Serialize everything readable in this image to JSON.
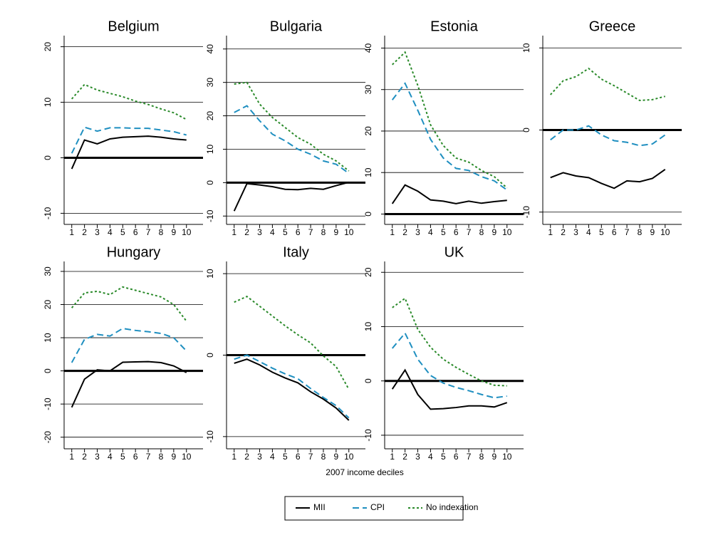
{
  "xlabel": "2007 income deciles",
  "chart_data": [
    {
      "type": "line",
      "title": "Belgium",
      "x": [
        1,
        2,
        3,
        4,
        5,
        6,
        7,
        8,
        9,
        10
      ],
      "xticks": [
        1,
        2,
        3,
        4,
        5,
        6,
        7,
        8,
        9,
        10
      ],
      "xlim": [
        0.4,
        11.3
      ],
      "ylim": [
        -12,
        22
      ],
      "yticks": [
        -10,
        0,
        10,
        20
      ],
      "grid": true,
      "hline": 0,
      "series": [
        {
          "name": "MII",
          "color": "#000000",
          "dash": "solid",
          "values": [
            -2,
            3.2,
            2.5,
            3.4,
            3.7,
            3.8,
            3.9,
            3.7,
            3.4,
            3.2
          ]
        },
        {
          "name": "CPI",
          "color": "#1f8fc0",
          "dash": "dashed",
          "values": [
            0.8,
            5.5,
            4.8,
            5.4,
            5.4,
            5.3,
            5.3,
            5.0,
            4.7,
            4.1
          ]
        },
        {
          "name": "No indexation",
          "color": "#2a8a2a",
          "dash": "dotted",
          "values": [
            10.6,
            13.2,
            12.2,
            11.6,
            11,
            10.2,
            9.6,
            8.8,
            8.1,
            6.9
          ]
        }
      ]
    },
    {
      "type": "line",
      "title": "Bulgaria",
      "x": [
        1,
        2,
        3,
        4,
        5,
        6,
        7,
        8,
        9,
        10
      ],
      "xticks": [
        1,
        2,
        3,
        4,
        5,
        6,
        7,
        8,
        9,
        10
      ],
      "xlim": [
        0.4,
        11.3
      ],
      "ylim": [
        -12.5,
        44
      ],
      "yticks": [
        -10,
        0,
        10,
        20,
        30,
        40
      ],
      "grid": true,
      "hline": 0,
      "series": [
        {
          "name": "MII",
          "color": "#000000",
          "dash": "solid",
          "values": [
            -8.5,
            -0.3,
            -0.7,
            -1.2,
            -2,
            -2.1,
            -1.7,
            -2,
            -0.9,
            0.1
          ]
        },
        {
          "name": "CPI",
          "color": "#1f8fc0",
          "dash": "dashed",
          "values": [
            21,
            23,
            18.5,
            14.5,
            12.5,
            10,
            8.5,
            6.5,
            5.5,
            2.8
          ]
        },
        {
          "name": "No indexation",
          "color": "#2a8a2a",
          "dash": "dotted",
          "values": [
            29.5,
            30,
            23.5,
            19.5,
            16.5,
            13.5,
            11.5,
            8.5,
            6.5,
            3.5
          ]
        }
      ]
    },
    {
      "type": "line",
      "title": "Estonia",
      "x": [
        1,
        2,
        3,
        4,
        5,
        6,
        7,
        8,
        9,
        10
      ],
      "xticks": [
        1,
        2,
        3,
        4,
        5,
        6,
        7,
        8,
        9,
        10
      ],
      "xlim": [
        0.4,
        11.3
      ],
      "ylim": [
        -2.5,
        43
      ],
      "yticks": [
        0,
        10,
        20,
        30,
        40
      ],
      "grid": true,
      "hline": 0,
      "series": [
        {
          "name": "MII",
          "color": "#000000",
          "dash": "solid",
          "values": [
            2.5,
            7,
            5.5,
            3.4,
            3.1,
            2.5,
            3.1,
            2.6,
            3,
            3.3
          ]
        },
        {
          "name": "CPI",
          "color": "#1f8fc0",
          "dash": "dashed",
          "values": [
            27.5,
            31.5,
            25,
            18,
            13.5,
            11,
            10.5,
            9,
            8,
            5.8
          ]
        },
        {
          "name": "No indexation",
          "color": "#2a8a2a",
          "dash": "dotted",
          "values": [
            36,
            39,
            31,
            21.5,
            16.5,
            13.5,
            12.5,
            10.5,
            9,
            6.3
          ]
        }
      ]
    },
    {
      "type": "line",
      "title": "Greece",
      "x": [
        1,
        2,
        3,
        4,
        5,
        6,
        7,
        8,
        9,
        10
      ],
      "xticks": [
        1,
        2,
        3,
        4,
        5,
        6,
        7,
        8,
        9,
        10
      ],
      "xlim": [
        0.4,
        11.3
      ],
      "ylim": [
        -11.5,
        11.5
      ],
      "yticks": [
        -10,
        0,
        10
      ],
      "grid": true,
      "hline": 0,
      "series": [
        {
          "name": "MII",
          "color": "#000000",
          "dash": "solid",
          "values": [
            -5.8,
            -5.2,
            -5.6,
            -5.8,
            -6.5,
            -7.1,
            -6.2,
            -6.3,
            -5.9,
            -4.8
          ]
        },
        {
          "name": "CPI",
          "color": "#1f8fc0",
          "dash": "dashed",
          "values": [
            -1.2,
            0,
            0,
            0.5,
            -0.6,
            -1.3,
            -1.5,
            -1.9,
            -1.7,
            -0.6
          ]
        },
        {
          "name": "No indexation",
          "color": "#2a8a2a",
          "dash": "dotted",
          "values": [
            4.3,
            6,
            6.5,
            7.5,
            6.2,
            5.4,
            4.5,
            3.6,
            3.7,
            4.1
          ]
        }
      ]
    },
    {
      "type": "line",
      "title": "Hungary",
      "x": [
        1,
        2,
        3,
        4,
        5,
        6,
        7,
        8,
        9,
        10
      ],
      "xticks": [
        1,
        2,
        3,
        4,
        5,
        6,
        7,
        8,
        9,
        10
      ],
      "xlim": [
        0.4,
        11.3
      ],
      "ylim": [
        -23.5,
        33
      ],
      "yticks": [
        -20,
        -10,
        0,
        10,
        20,
        30
      ],
      "grid": true,
      "hline": 0,
      "series": [
        {
          "name": "MII",
          "color": "#000000",
          "dash": "solid",
          "values": [
            -11,
            -2.5,
            0.3,
            0,
            2.6,
            2.7,
            2.8,
            2.5,
            1.5,
            -0.5
          ]
        },
        {
          "name": "CPI",
          "color": "#1f8fc0",
          "dash": "dashed",
          "values": [
            2.5,
            9.5,
            11,
            10.5,
            12.8,
            12.2,
            11.8,
            11.3,
            10,
            6
          ]
        },
        {
          "name": "No indexation",
          "color": "#2a8a2a",
          "dash": "dotted",
          "values": [
            19,
            23.5,
            24,
            23,
            25.3,
            24.3,
            23.3,
            22.3,
            20,
            15
          ]
        }
      ]
    },
    {
      "type": "line",
      "title": "Italy",
      "x": [
        1,
        2,
        3,
        4,
        5,
        6,
        7,
        8,
        9,
        10
      ],
      "xticks": [
        1,
        2,
        3,
        4,
        5,
        6,
        7,
        8,
        9,
        10
      ],
      "xlim": [
        0.4,
        11.3
      ],
      "ylim": [
        -11.5,
        11.5
      ],
      "yticks": [
        -10,
        0,
        10
      ],
      "grid": true,
      "hline": 0,
      "series": [
        {
          "name": "MII",
          "color": "#000000",
          "dash": "solid",
          "values": [
            -1,
            -0.5,
            -1.2,
            -2.1,
            -2.8,
            -3.4,
            -4.5,
            -5.4,
            -6.5,
            -8
          ]
        },
        {
          "name": "CPI",
          "color": "#1f8fc0",
          "dash": "dashed",
          "values": [
            -0.5,
            0,
            -0.8,
            -1.6,
            -2.3,
            -2.9,
            -4.1,
            -5.2,
            -6.2,
            -7.7
          ]
        },
        {
          "name": "No indexation",
          "color": "#2a8a2a",
          "dash": "dotted",
          "values": [
            6.5,
            7.2,
            6,
            4.8,
            3.6,
            2.5,
            1.5,
            -0.1,
            -1.4,
            -4.2
          ]
        }
      ]
    },
    {
      "type": "line",
      "title": "UK",
      "x": [
        1,
        2,
        3,
        4,
        5,
        6,
        7,
        8,
        9,
        10
      ],
      "xticks": [
        1,
        2,
        3,
        4,
        5,
        6,
        7,
        8,
        9,
        10
      ],
      "xlim": [
        0.4,
        11.3
      ],
      "ylim": [
        -12.5,
        22
      ],
      "yticks": [
        -10,
        0,
        10,
        20
      ],
      "grid": true,
      "hline": 0,
      "series": [
        {
          "name": "MII",
          "color": "#000000",
          "dash": "solid",
          "values": [
            -1.5,
            2,
            -2.5,
            -5.2,
            -5.1,
            -4.9,
            -4.6,
            -4.6,
            -4.8,
            -4
          ]
        },
        {
          "name": "CPI",
          "color": "#1f8fc0",
          "dash": "dashed",
          "values": [
            6,
            8.8,
            4,
            1,
            -0.4,
            -1.2,
            -1.8,
            -2.5,
            -3.1,
            -2.8
          ]
        },
        {
          "name": "No indexation",
          "color": "#2a8a2a",
          "dash": "dotted",
          "values": [
            13.5,
            15.2,
            9.5,
            6.2,
            4,
            2.5,
            1.2,
            0,
            -0.8,
            -0.9
          ]
        }
      ]
    }
  ]
}
